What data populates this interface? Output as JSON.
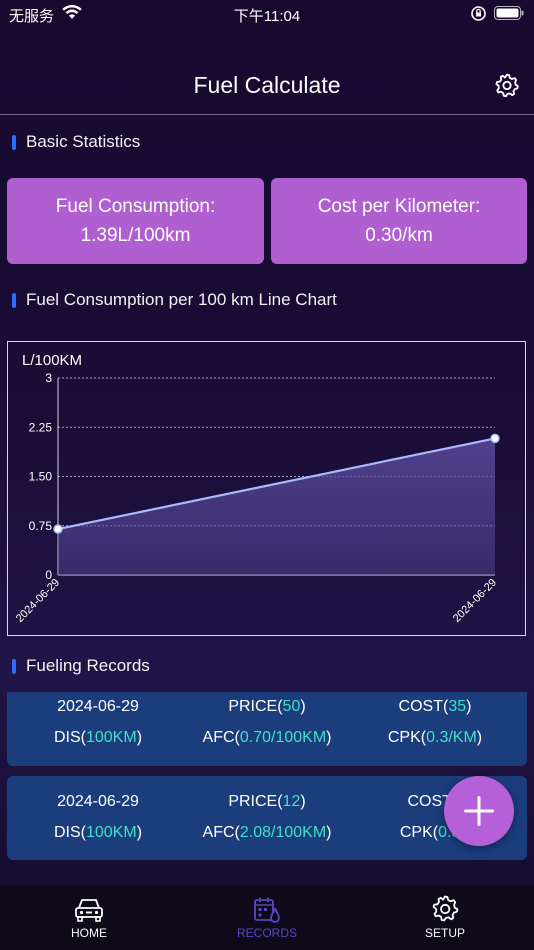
{
  "status_bar": {
    "carrier": "无服务",
    "time": "下午11:04"
  },
  "header": {
    "title": "Fuel Calculate"
  },
  "basic_stats": {
    "title": "Basic Statistics",
    "cards": [
      {
        "label": "Fuel Consumption:",
        "value": "1.39L/100km"
      },
      {
        "label": "Cost per Kilometer:",
        "value": "0.30/km"
      }
    ]
  },
  "chart_section": {
    "title": "Fuel Consumption per 100 km Line Chart"
  },
  "chart_data": {
    "type": "line",
    "ylabel": "L/100KM",
    "ylim": [
      0,
      3
    ],
    "yticks": [
      "0",
      "0.75",
      "1.50",
      "2.25",
      "3"
    ],
    "categories": [
      "2024-06-29",
      "2024-06-29"
    ],
    "series": [
      {
        "values": [
          0.7,
          2.08
        ]
      }
    ],
    "grid": true,
    "colors": {
      "line": "#a9b8ff",
      "area": "#5a4a9c"
    }
  },
  "records_section": {
    "title": "Fueling Records",
    "records": [
      {
        "date": "2024-06-29",
        "price_label": "PRICE(",
        "price": "50",
        "cost_label": "COST(",
        "cost": "35",
        "dis_label": "DIS(",
        "dis": "100KM",
        "afc_label": "AFC(",
        "afc": "0.70/100KM",
        "cpk_label": "CPK(",
        "cpk": "0.3/KM",
        "close": ")"
      },
      {
        "date": "2024-06-29",
        "price_label": "PRICE(",
        "price": "12",
        "cost_label": "COST(",
        "cost": "",
        "dis_label": "DIS(",
        "dis": "100KM",
        "afc_label": "AFC(",
        "afc": "2.08/100KM",
        "cpk_label": "CPK(",
        "cpk": "0.3/",
        "close": ")"
      }
    ]
  },
  "tabs": [
    {
      "label": "HOME",
      "icon": "car-icon"
    },
    {
      "label": "RECORDS",
      "icon": "records-icon"
    },
    {
      "label": "SETUP",
      "icon": "gear-icon"
    }
  ],
  "colors": {
    "accent": "#b05fd1",
    "record_bg": "#1b3d7c",
    "highlight": "#3fe0c9",
    "tab_active": "#5b46c4"
  }
}
